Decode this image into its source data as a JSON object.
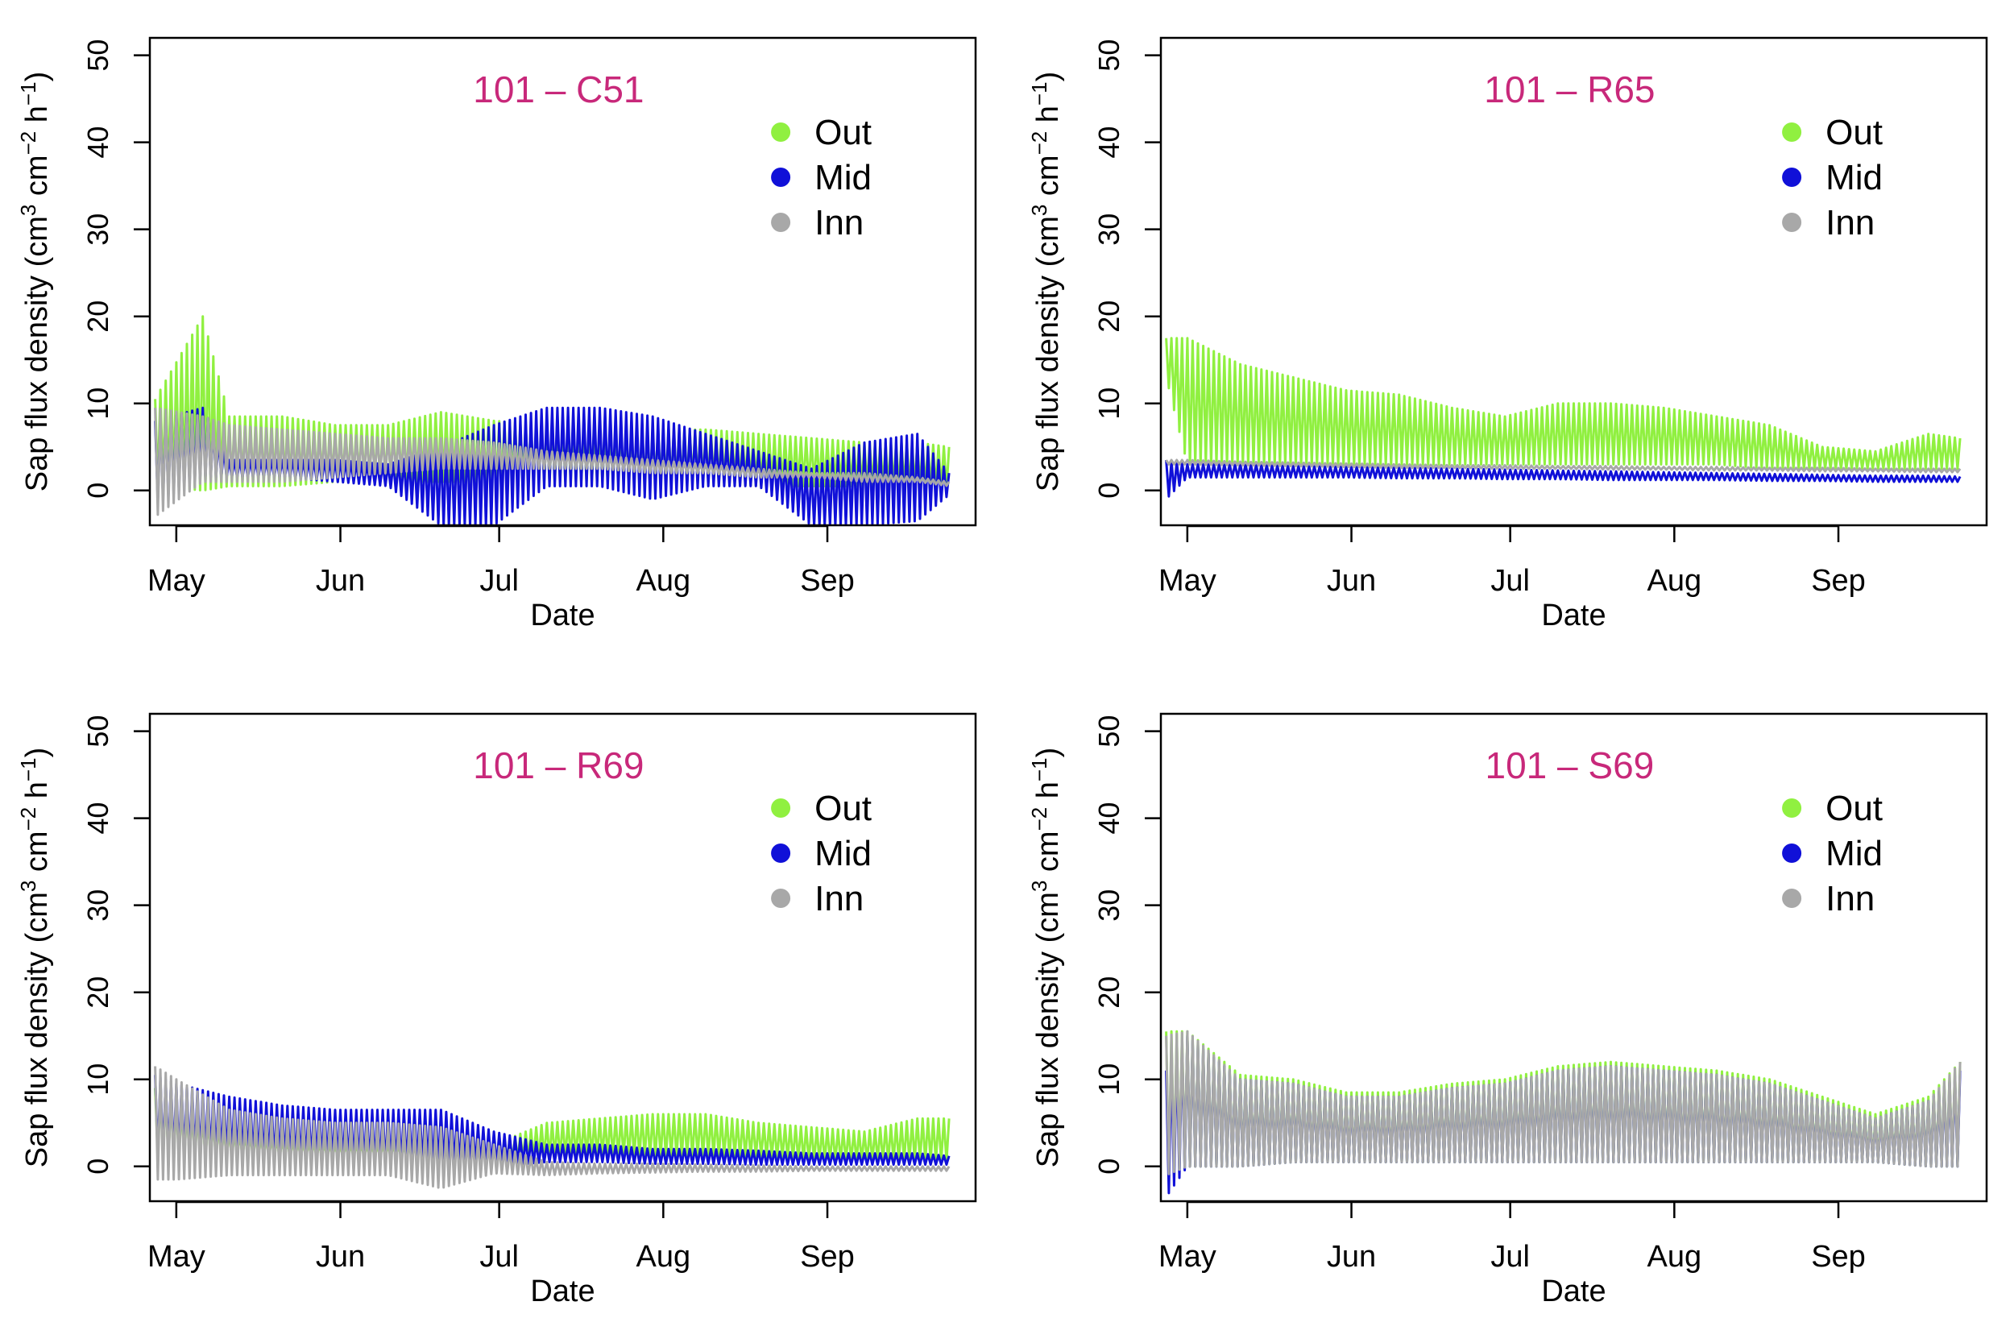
{
  "figure": {
    "colors": {
      "Out": "#90f040",
      "Mid": "#1010d8",
      "Inn": "#a8a8a8",
      "title": "#c8287a",
      "axis": "#000000"
    },
    "legend": {
      "entries": [
        "Out",
        "Mid",
        "Inn"
      ]
    }
  },
  "chart_data": [
    {
      "type": "line",
      "title": "101 – C51",
      "xlabel": "Date",
      "ylabel": "Sap flux density (cm³ cm⁻² h⁻¹)",
      "ylabel_parts": [
        "Sap flux density (cm",
        "3",
        " cm",
        "−2",
        " h",
        "−1",
        ")"
      ],
      "xlim": [
        -5,
        151
      ],
      "ylim": [
        -4,
        52
      ],
      "x_ticks": [
        {
          "label": "May",
          "value": 0
        },
        {
          "label": "Jun",
          "value": 31
        },
        {
          "label": "Jul",
          "value": 61
        },
        {
          "label": "Aug",
          "value": 92
        },
        {
          "label": "Sep",
          "value": 123
        }
      ],
      "y_ticks": [
        0,
        10,
        20,
        30,
        40,
        50
      ],
      "legend": "top-right",
      "x_unit": "days since May 1",
      "series": [
        {
          "name": "Out",
          "x": [
            -4,
            5,
            10,
            20,
            30,
            40,
            50,
            60,
            70,
            80,
            90,
            100,
            110,
            120,
            130,
            140,
            146
          ],
          "max": [
            10.5,
            20.0,
            8.5,
            8.5,
            7.5,
            7.5,
            9.0,
            8.0,
            7.5,
            7.0,
            7.0,
            7.0,
            6.5,
            6.0,
            5.5,
            5.5,
            5.0
          ],
          "min": [
            0.5,
            0.0,
            0.5,
            0.5,
            1.0,
            1.0,
            1.0,
            1.0,
            1.0,
            1.0,
            1.0,
            1.0,
            0.5,
            0.5,
            0.5,
            0.5,
            0.0
          ]
        },
        {
          "name": "Mid",
          "x": [
            -4,
            5,
            10,
            20,
            30,
            40,
            50,
            60,
            70,
            80,
            90,
            100,
            110,
            120,
            130,
            140,
            146
          ],
          "max": [
            8.0,
            9.5,
            3.5,
            3.5,
            3.5,
            3.0,
            5.0,
            7.5,
            9.5,
            9.5,
            8.5,
            6.5,
            4.5,
            2.5,
            5.5,
            6.5,
            2.0
          ],
          "min": [
            -1.5,
            1.5,
            1.5,
            1.5,
            1.0,
            0.5,
            -4.0,
            -4.0,
            0.5,
            0.5,
            -1.0,
            0.5,
            0.5,
            -4.0,
            -4.0,
            -3.5,
            -0.5
          ]
        },
        {
          "name": "Inn",
          "x": [
            -4,
            5,
            10,
            20,
            30,
            40,
            50,
            60,
            70,
            80,
            90,
            100,
            110,
            120,
            130,
            140,
            146
          ],
          "max": [
            9.5,
            8.5,
            7.5,
            7.0,
            6.5,
            6.0,
            6.0,
            5.5,
            4.5,
            4.0,
            3.5,
            3.0,
            2.5,
            2.0,
            2.0,
            1.5,
            1.0
          ],
          "min": [
            -3.0,
            1.0,
            1.0,
            1.0,
            1.5,
            2.0,
            2.5,
            2.5,
            2.5,
            2.5,
            2.0,
            2.0,
            1.5,
            1.5,
            1.0,
            1.0,
            0.5
          ]
        }
      ]
    },
    {
      "type": "line",
      "title": "101 – R65",
      "xlabel": "Date",
      "ylabel": "Sap flux density (cm³ cm⁻² h⁻¹)",
      "ylabel_parts": [
        "Sap flux density (cm",
        "3",
        " cm",
        "−2",
        " h",
        "−1",
        ")"
      ],
      "xlim": [
        -5,
        151
      ],
      "ylim": [
        -4,
        52
      ],
      "x_ticks": [
        {
          "label": "May",
          "value": 0
        },
        {
          "label": "Jun",
          "value": 31
        },
        {
          "label": "Jul",
          "value": 61
        },
        {
          "label": "Aug",
          "value": 92
        },
        {
          "label": "Sep",
          "value": 123
        }
      ],
      "y_ticks": [
        0,
        10,
        20,
        30,
        40,
        50
      ],
      "legend": "top-right",
      "x_unit": "days since May 1",
      "series": [
        {
          "name": "Out",
          "x": [
            -4,
            0,
            10,
            20,
            30,
            40,
            50,
            60,
            70,
            80,
            90,
            100,
            110,
            120,
            130,
            140,
            146
          ],
          "max": [
            17.5,
            17.5,
            14.5,
            13.0,
            11.5,
            11.0,
            9.5,
            8.5,
            10.0,
            10.0,
            9.5,
            8.5,
            7.5,
            5.0,
            4.5,
            6.5,
            6.0
          ],
          "min": [
            13.0,
            3.0,
            3.0,
            3.0,
            3.0,
            3.0,
            3.0,
            3.0,
            3.0,
            3.0,
            3.0,
            3.0,
            2.5,
            2.5,
            2.5,
            2.5,
            2.5
          ]
        },
        {
          "name": "Mid",
          "x": [
            -4,
            0,
            10,
            20,
            30,
            40,
            50,
            60,
            70,
            80,
            90,
            100,
            110,
            120,
            130,
            140,
            146
          ],
          "max": [
            3.5,
            3.0,
            3.0,
            2.8,
            2.7,
            2.6,
            2.5,
            2.4,
            2.3,
            2.2,
            2.1,
            2.0,
            1.9,
            1.8,
            1.7,
            1.7,
            1.6
          ],
          "min": [
            -1.0,
            1.5,
            1.5,
            1.5,
            1.5,
            1.4,
            1.4,
            1.3,
            1.3,
            1.2,
            1.2,
            1.2,
            1.1,
            1.1,
            1.0,
            1.0,
            1.0
          ]
        },
        {
          "name": "Inn",
          "x": [
            -4,
            0,
            10,
            20,
            30,
            40,
            50,
            60,
            70,
            80,
            90,
            100,
            110,
            120,
            130,
            140,
            146
          ],
          "max": [
            3.5,
            3.5,
            3.3,
            3.2,
            3.1,
            3.0,
            2.9,
            2.9,
            2.8,
            2.8,
            2.7,
            2.7,
            2.6,
            2.6,
            2.5,
            2.5,
            2.5
          ],
          "min": [
            3.0,
            3.0,
            2.9,
            2.8,
            2.7,
            2.6,
            2.6,
            2.5,
            2.5,
            2.4,
            2.4,
            2.3,
            2.3,
            2.2,
            2.2,
            2.1,
            2.1
          ]
        }
      ]
    },
    {
      "type": "line",
      "title": "101 – R69",
      "xlabel": "Date",
      "ylabel": "Sap flux density (cm³ cm⁻² h⁻¹)",
      "ylabel_parts": [
        "Sap flux density (cm",
        "3",
        " cm",
        "−2",
        " h",
        "−1",
        ")"
      ],
      "xlim": [
        -5,
        151
      ],
      "ylim": [
        -4,
        52
      ],
      "x_ticks": [
        {
          "label": "May",
          "value": 0
        },
        {
          "label": "Jun",
          "value": 31
        },
        {
          "label": "Jul",
          "value": 61
        },
        {
          "label": "Aug",
          "value": 92
        },
        {
          "label": "Sep",
          "value": 123
        }
      ],
      "y_ticks": [
        0,
        10,
        20,
        30,
        40,
        50
      ],
      "legend": "top-right",
      "x_unit": "days since May 1",
      "series": [
        {
          "name": "Out",
          "x": [
            -4,
            0,
            10,
            20,
            30,
            40,
            50,
            60,
            70,
            80,
            90,
            100,
            110,
            120,
            130,
            140,
            146
          ],
          "max": [
            9.0,
            7.0,
            4.0,
            3.0,
            2.5,
            2.5,
            2.5,
            2.5,
            5.0,
            5.5,
            6.0,
            6.0,
            5.0,
            4.5,
            4.0,
            5.5,
            5.5
          ],
          "min": [
            1.0,
            1.0,
            1.0,
            1.0,
            1.0,
            1.0,
            0.5,
            0.5,
            1.0,
            1.0,
            1.0,
            1.0,
            1.0,
            0.5,
            0.5,
            0.5,
            0.5
          ]
        },
        {
          "name": "Mid",
          "x": [
            -4,
            0,
            10,
            20,
            30,
            40,
            50,
            60,
            70,
            80,
            90,
            100,
            110,
            120,
            130,
            140,
            146
          ],
          "max": [
            10.5,
            9.5,
            8.0,
            7.0,
            6.5,
            6.5,
            6.5,
            4.0,
            2.5,
            2.5,
            2.0,
            2.0,
            1.8,
            1.5,
            1.5,
            1.5,
            1.2
          ],
          "min": [
            1.0,
            1.0,
            1.0,
            0.5,
            0.5,
            0.0,
            0.0,
            0.0,
            0.5,
            0.5,
            0.3,
            0.3,
            0.2,
            0.2,
            0.2,
            0.2,
            0.2
          ]
        },
        {
          "name": "Inn",
          "x": [
            -4,
            0,
            10,
            20,
            30,
            40,
            50,
            60,
            70,
            80,
            90,
            100,
            110,
            120,
            130,
            140,
            146
          ],
          "max": [
            11.5,
            10.0,
            6.5,
            5.5,
            5.0,
            5.0,
            4.5,
            2.5,
            0.5,
            0.3,
            0.3,
            0.2,
            0.1,
            0.0,
            0.0,
            0.0,
            0.0
          ],
          "min": [
            -1.5,
            -1.5,
            -1.0,
            -1.0,
            -1.0,
            -1.0,
            -2.5,
            -0.8,
            -1.0,
            -0.8,
            -0.7,
            -0.6,
            -0.6,
            -0.5,
            -0.5,
            -0.5,
            -0.5
          ]
        }
      ]
    },
    {
      "type": "line",
      "title": "101 – S69",
      "xlabel": "Date",
      "ylabel": "Sap flux density (cm³ cm⁻² h⁻¹)",
      "ylabel_parts": [
        "Sap flux density (cm",
        "3",
        " cm",
        "−2",
        " h",
        "−1",
        ")"
      ],
      "xlim": [
        -5,
        151
      ],
      "ylim": [
        -4,
        52
      ],
      "x_ticks": [
        {
          "label": "May",
          "value": 0
        },
        {
          "label": "Jun",
          "value": 31
        },
        {
          "label": "Jul",
          "value": 61
        },
        {
          "label": "Aug",
          "value": 92
        },
        {
          "label": "Sep",
          "value": 123
        }
      ],
      "y_ticks": [
        0,
        10,
        20,
        30,
        40,
        50
      ],
      "legend": "top-right",
      "x_unit": "days since May 1",
      "series": [
        {
          "name": "Out",
          "x": [
            -4,
            0,
            10,
            20,
            30,
            40,
            50,
            60,
            70,
            80,
            90,
            100,
            110,
            120,
            130,
            140,
            146
          ],
          "max": [
            15.5,
            15.5,
            10.5,
            10.0,
            8.5,
            8.5,
            9.5,
            10.0,
            11.5,
            12.0,
            11.5,
            11.0,
            10.0,
            8.0,
            6.0,
            8.0,
            12.0
          ],
          "min": [
            -1.5,
            0.0,
            0.0,
            0.5,
            0.5,
            0.5,
            0.5,
            0.5,
            0.5,
            0.5,
            0.5,
            0.5,
            0.5,
            0.5,
            0.5,
            0.0,
            0.0
          ]
        },
        {
          "name": "Mid",
          "x": [
            -4,
            0,
            10,
            20,
            30,
            40,
            50,
            60,
            70,
            80,
            90,
            100,
            110,
            120,
            130,
            140,
            146
          ],
          "max": [
            11.0,
            15.0,
            10.0,
            9.5,
            8.0,
            8.0,
            9.0,
            9.5,
            11.0,
            11.5,
            11.0,
            10.5,
            9.5,
            7.5,
            5.5,
            7.5,
            11.0
          ],
          "min": [
            -3.5,
            0.0,
            0.0,
            0.5,
            0.5,
            0.5,
            0.5,
            0.5,
            0.5,
            0.5,
            0.5,
            0.5,
            0.5,
            0.5,
            0.5,
            0.0,
            0.0
          ]
        },
        {
          "name": "Inn",
          "x": [
            -4,
            0,
            10,
            20,
            30,
            40,
            50,
            60,
            70,
            80,
            90,
            100,
            110,
            120,
            130,
            140,
            146
          ],
          "max": [
            15.0,
            15.5,
            10.0,
            9.5,
            8.0,
            8.0,
            9.0,
            9.5,
            11.0,
            11.5,
            11.0,
            10.5,
            9.5,
            7.5,
            5.5,
            7.5,
            12.0
          ],
          "min": [
            -1.0,
            0.0,
            0.0,
            0.5,
            0.5,
            0.5,
            0.5,
            0.5,
            0.5,
            0.5,
            0.5,
            0.5,
            0.5,
            0.5,
            0.5,
            0.0,
            0.0
          ]
        }
      ]
    }
  ]
}
